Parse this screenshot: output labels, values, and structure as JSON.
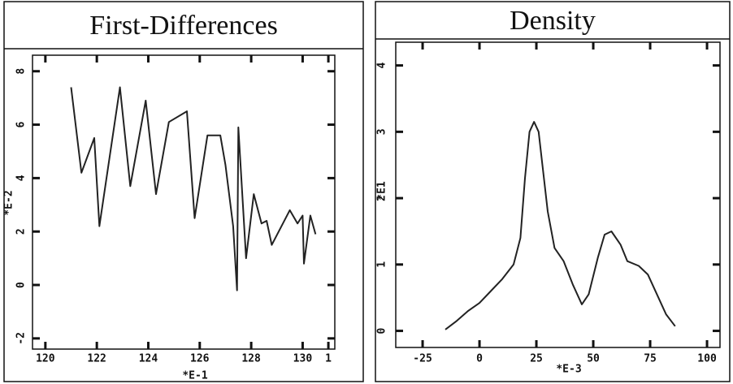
{
  "chart_data": [
    {
      "type": "line",
      "title": "First-Differences",
      "x_label": "*E-1",
      "y_label": "*E-2",
      "color": "#222222",
      "x": [
        121.0,
        121.4,
        121.9,
        122.1,
        122.9,
        123.3,
        123.9,
        124.3,
        124.8,
        125.5,
        125.8,
        126.3,
        126.8,
        127.0,
        127.3,
        127.45,
        127.5,
        127.8,
        128.1,
        128.4,
        128.6,
        128.8,
        129.5,
        129.8,
        130.0,
        130.05,
        130.3,
        130.5
      ],
      "values": [
        7.4,
        4.2,
        5.5,
        2.2,
        7.4,
        3.7,
        6.9,
        3.4,
        6.1,
        6.5,
        2.5,
        5.6,
        5.6,
        4.5,
        2.2,
        -0.2,
        5.9,
        1.0,
        3.4,
        2.3,
        2.4,
        1.5,
        2.8,
        2.3,
        2.6,
        0.8,
        2.6,
        1.9
      ],
      "xlim": [
        119.5,
        131.25
      ],
      "xticks": [
        120,
        122,
        124,
        126,
        128,
        130,
        {
          "value": 131,
          "label": "1"
        }
      ],
      "ylim": [
        -2.4,
        8.6
      ],
      "yticks": [
        -2,
        0,
        2,
        4,
        6,
        8
      ]
    },
    {
      "type": "line",
      "title": "Density",
      "x_label": "*E-3",
      "y_label": "*E1",
      "color": "#222222",
      "x": [
        -15,
        -10,
        -5,
        0,
        5,
        10,
        15,
        18,
        20,
        22,
        24,
        26,
        28,
        30,
        33,
        37,
        41,
        45,
        48,
        52,
        55,
        58,
        62,
        65,
        70,
        74,
        78,
        82,
        86
      ],
      "values": [
        0.02,
        0.15,
        0.3,
        0.42,
        0.6,
        0.78,
        1.0,
        1.4,
        2.3,
        3.0,
        3.15,
        3.0,
        2.4,
        1.8,
        1.25,
        1.05,
        0.7,
        0.4,
        0.55,
        1.1,
        1.45,
        1.5,
        1.3,
        1.05,
        0.98,
        0.85,
        0.55,
        0.25,
        0.07
      ],
      "xlim": [
        -36.8,
        105.7
      ],
      "xticks": [
        -25,
        0,
        25,
        50,
        75,
        100
      ],
      "ylim": [
        -0.25,
        4.35
      ],
      "yticks": [
        0,
        1,
        2,
        3,
        4
      ]
    }
  ]
}
